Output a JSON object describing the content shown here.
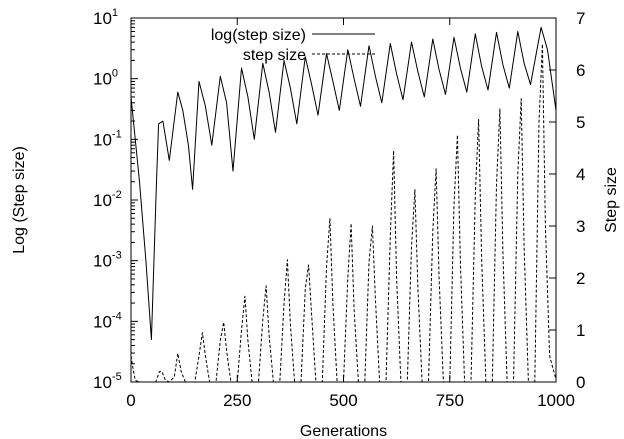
{
  "chart_data": {
    "type": "line",
    "xlabel": "Generations",
    "ylabel_left": "Log (Step size)",
    "ylabel_right": "Step size",
    "xlim": [
      0,
      1000
    ],
    "ylim_left": [
      1e-05,
      10
    ],
    "ylim_right": [
      0,
      7
    ],
    "yscale_left": "log",
    "yscale_right": "linear",
    "xticks": [
      "0",
      "250",
      "500",
      "750",
      "1000"
    ],
    "yticks_left": [
      {
        "base": "10",
        "exp": "1"
      },
      {
        "base": "10",
        "exp": "0"
      },
      {
        "base": "10",
        "exp": "-1"
      },
      {
        "base": "10",
        "exp": "-2"
      },
      {
        "base": "10",
        "exp": "-3"
      },
      {
        "base": "10",
        "exp": "-4"
      },
      {
        "base": "10",
        "exp": "-5"
      }
    ],
    "yticks_right": [
      "7",
      "6",
      "5",
      "4",
      "3",
      "2",
      "1",
      "0"
    ],
    "legend_position": "top-center",
    "grid": false,
    "series": [
      {
        "name": "log(step size)",
        "style": "solid",
        "axis": "left",
        "color": "#000000",
        "points": [
          [
            0,
            0.5
          ],
          [
            20,
            0.02
          ],
          [
            35,
            0.001
          ],
          [
            48,
            5e-05
          ],
          [
            60,
            0.02
          ],
          [
            65,
            0.18
          ],
          [
            75,
            0.2
          ],
          [
            90,
            0.045
          ],
          [
            110,
            0.6
          ],
          [
            122,
            0.3
          ],
          [
            135,
            0.08
          ],
          [
            145,
            0.015
          ],
          [
            160,
            0.9
          ],
          [
            175,
            0.35
          ],
          [
            190,
            0.08
          ],
          [
            210,
            1.1
          ],
          [
            225,
            0.4
          ],
          [
            240,
            0.03
          ],
          [
            260,
            1.5
          ],
          [
            275,
            0.5
          ],
          [
            290,
            0.1
          ],
          [
            310,
            1.8
          ],
          [
            325,
            0.6
          ],
          [
            340,
            0.13
          ],
          [
            360,
            2.0
          ],
          [
            375,
            0.7
          ],
          [
            390,
            0.18
          ],
          [
            410,
            2.3
          ],
          [
            425,
            0.8
          ],
          [
            440,
            0.25
          ],
          [
            460,
            2.6
          ],
          [
            475,
            0.9
          ],
          [
            490,
            0.3
          ],
          [
            510,
            3.0
          ],
          [
            525,
            1.0
          ],
          [
            540,
            0.35
          ],
          [
            560,
            3.5
          ],
          [
            575,
            1.1
          ],
          [
            590,
            0.4
          ],
          [
            610,
            3.8
          ],
          [
            625,
            1.2
          ],
          [
            640,
            0.45
          ],
          [
            660,
            4.0
          ],
          [
            675,
            1.3
          ],
          [
            690,
            0.5
          ],
          [
            710,
            4.5
          ],
          [
            725,
            1.4
          ],
          [
            740,
            0.55
          ],
          [
            760,
            4.8
          ],
          [
            775,
            1.5
          ],
          [
            790,
            0.6
          ],
          [
            810,
            5.5
          ],
          [
            825,
            1.6
          ],
          [
            840,
            0.65
          ],
          [
            860,
            5.8
          ],
          [
            875,
            1.7
          ],
          [
            890,
            0.7
          ],
          [
            910,
            6.0
          ],
          [
            925,
            1.8
          ],
          [
            940,
            0.8
          ],
          [
            965,
            7.0
          ],
          [
            980,
            3.0
          ],
          [
            1000,
            0.3
          ]
        ]
      },
      {
        "name": "step size",
        "style": "dashed",
        "axis": "right",
        "color": "#000000",
        "points": [
          [
            0,
            0.5
          ],
          [
            5,
            0.25
          ],
          [
            10,
            0.03
          ],
          [
            20,
            0.0
          ],
          [
            45,
            0.0
          ],
          [
            58,
            0.0
          ],
          [
            67,
            0.2
          ],
          [
            73,
            0.2
          ],
          [
            80,
            0.05
          ],
          [
            90,
            0.0
          ],
          [
            102,
            0.1
          ],
          [
            110,
            0.55
          ],
          [
            118,
            0.2
          ],
          [
            128,
            0.0
          ],
          [
            150,
            0.0
          ],
          [
            160,
            0.5
          ],
          [
            168,
            0.95
          ],
          [
            175,
            0.5
          ],
          [
            185,
            0.0
          ],
          [
            200,
            0.0
          ],
          [
            210,
            0.8
          ],
          [
            218,
            1.15
          ],
          [
            225,
            0.6
          ],
          [
            235,
            0.0
          ],
          [
            250,
            0.0
          ],
          [
            260,
            1.0
          ],
          [
            268,
            1.65
          ],
          [
            275,
            0.8
          ],
          [
            285,
            0.0
          ],
          [
            300,
            0.0
          ],
          [
            310,
            1.2
          ],
          [
            318,
            1.85
          ],
          [
            325,
            0.9
          ],
          [
            335,
            0.0
          ],
          [
            350,
            0.0
          ],
          [
            360,
            1.5
          ],
          [
            368,
            2.35
          ],
          [
            375,
            1.1
          ],
          [
            385,
            0.0
          ],
          [
            400,
            0.0
          ],
          [
            410,
            1.8
          ],
          [
            418,
            2.25
          ],
          [
            425,
            1.3
          ],
          [
            435,
            0.0
          ],
          [
            450,
            0.0
          ],
          [
            460,
            2.2
          ],
          [
            468,
            3.15
          ],
          [
            475,
            1.5
          ],
          [
            485,
            0.0
          ],
          [
            500,
            0.0
          ],
          [
            510,
            2.0
          ],
          [
            518,
            3.05
          ],
          [
            525,
            1.4
          ],
          [
            535,
            0.0
          ],
          [
            550,
            0.0
          ],
          [
            560,
            2.3
          ],
          [
            568,
            3.0
          ],
          [
            575,
            1.6
          ],
          [
            585,
            0.0
          ],
          [
            600,
            0.0
          ],
          [
            610,
            2.8
          ],
          [
            618,
            4.45
          ],
          [
            625,
            2.0
          ],
          [
            635,
            0.0
          ],
          [
            650,
            0.0
          ],
          [
            660,
            2.6
          ],
          [
            668,
            3.7
          ],
          [
            675,
            1.8
          ],
          [
            685,
            0.0
          ],
          [
            700,
            0.0
          ],
          [
            710,
            2.9
          ],
          [
            718,
            4.1
          ],
          [
            725,
            2.0
          ],
          [
            735,
            0.0
          ],
          [
            750,
            0.0
          ],
          [
            760,
            3.4
          ],
          [
            768,
            4.75
          ],
          [
            775,
            2.3
          ],
          [
            785,
            0.0
          ],
          [
            800,
            0.0
          ],
          [
            810,
            3.6
          ],
          [
            818,
            5.05
          ],
          [
            825,
            2.4
          ],
          [
            835,
            0.0
          ],
          [
            850,
            0.0
          ],
          [
            860,
            3.8
          ],
          [
            868,
            5.25
          ],
          [
            875,
            2.5
          ],
          [
            885,
            0.0
          ],
          [
            900,
            0.0
          ],
          [
            910,
            4.0
          ],
          [
            918,
            5.45
          ],
          [
            925,
            2.6
          ],
          [
            935,
            0.0
          ],
          [
            950,
            0.0
          ],
          [
            960,
            5.0
          ],
          [
            968,
            6.5
          ],
          [
            975,
            3.0
          ],
          [
            985,
            0.5
          ],
          [
            1000,
            0.05
          ]
        ]
      }
    ]
  }
}
